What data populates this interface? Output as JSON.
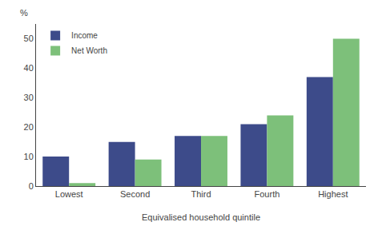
{
  "chart_data": {
    "type": "bar",
    "categories": [
      "Lowest",
      "Second",
      "Third",
      "Fourth",
      "Highest"
    ],
    "series": [
      {
        "name": "Income",
        "color": "#3d4b8a",
        "values": [
          10,
          15,
          17,
          21,
          37
        ]
      },
      {
        "name": "Net Worth",
        "color": "#7dc07a",
        "values": [
          1,
          9,
          17,
          24,
          50
        ]
      }
    ],
    "xlabel": "Equivalised household quintile",
    "ylabel": "%",
    "ylim": [
      0,
      55
    ],
    "yticks": [
      0,
      10,
      20,
      30,
      40,
      50
    ],
    "grid": false,
    "legend": "upper left"
  }
}
